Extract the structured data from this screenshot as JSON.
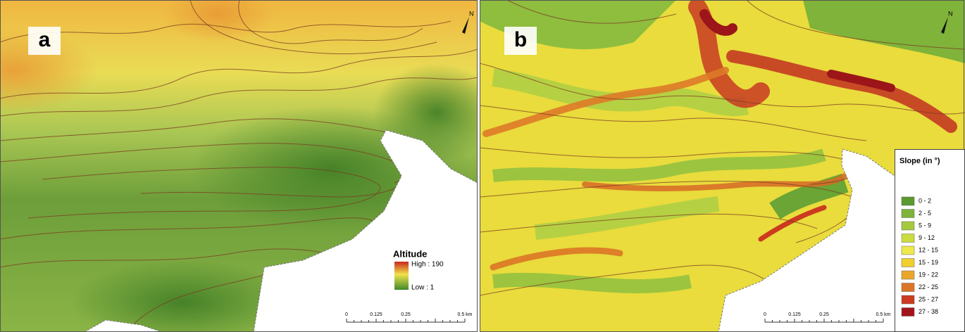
{
  "panels": [
    {
      "label": "a",
      "north": "N",
      "legend": {
        "title": "Altitude",
        "high": "High : 190",
        "low": "Low : 1"
      },
      "scale_bar": [
        "0",
        "0.125",
        "0.25",
        "0.5 km"
      ]
    },
    {
      "label": "b",
      "north": "N",
      "legend": {
        "title": "Slope (in °)",
        "classes": [
          {
            "label": "0 - 2",
            "color": "#5a9a2e"
          },
          {
            "label": "2 - 5",
            "color": "#7db43a"
          },
          {
            "label": "5 - 9",
            "color": "#a6c93c"
          },
          {
            "label": "9 - 12",
            "color": "#cbdc3e"
          },
          {
            "label": "12 - 15",
            "color": "#eee84a"
          },
          {
            "label": "15 - 19",
            "color": "#f1cf2e"
          },
          {
            "label": "19 - 22",
            "color": "#e9a62a"
          },
          {
            "label": "22 - 25",
            "color": "#dc7526"
          },
          {
            "label": "25 - 27",
            "color": "#cc3a20"
          },
          {
            "label": "27 - 38",
            "color": "#a3141a"
          }
        ]
      },
      "scale_bar": [
        "0",
        "0.125",
        "0.25",
        "0.5 km"
      ]
    }
  ]
}
